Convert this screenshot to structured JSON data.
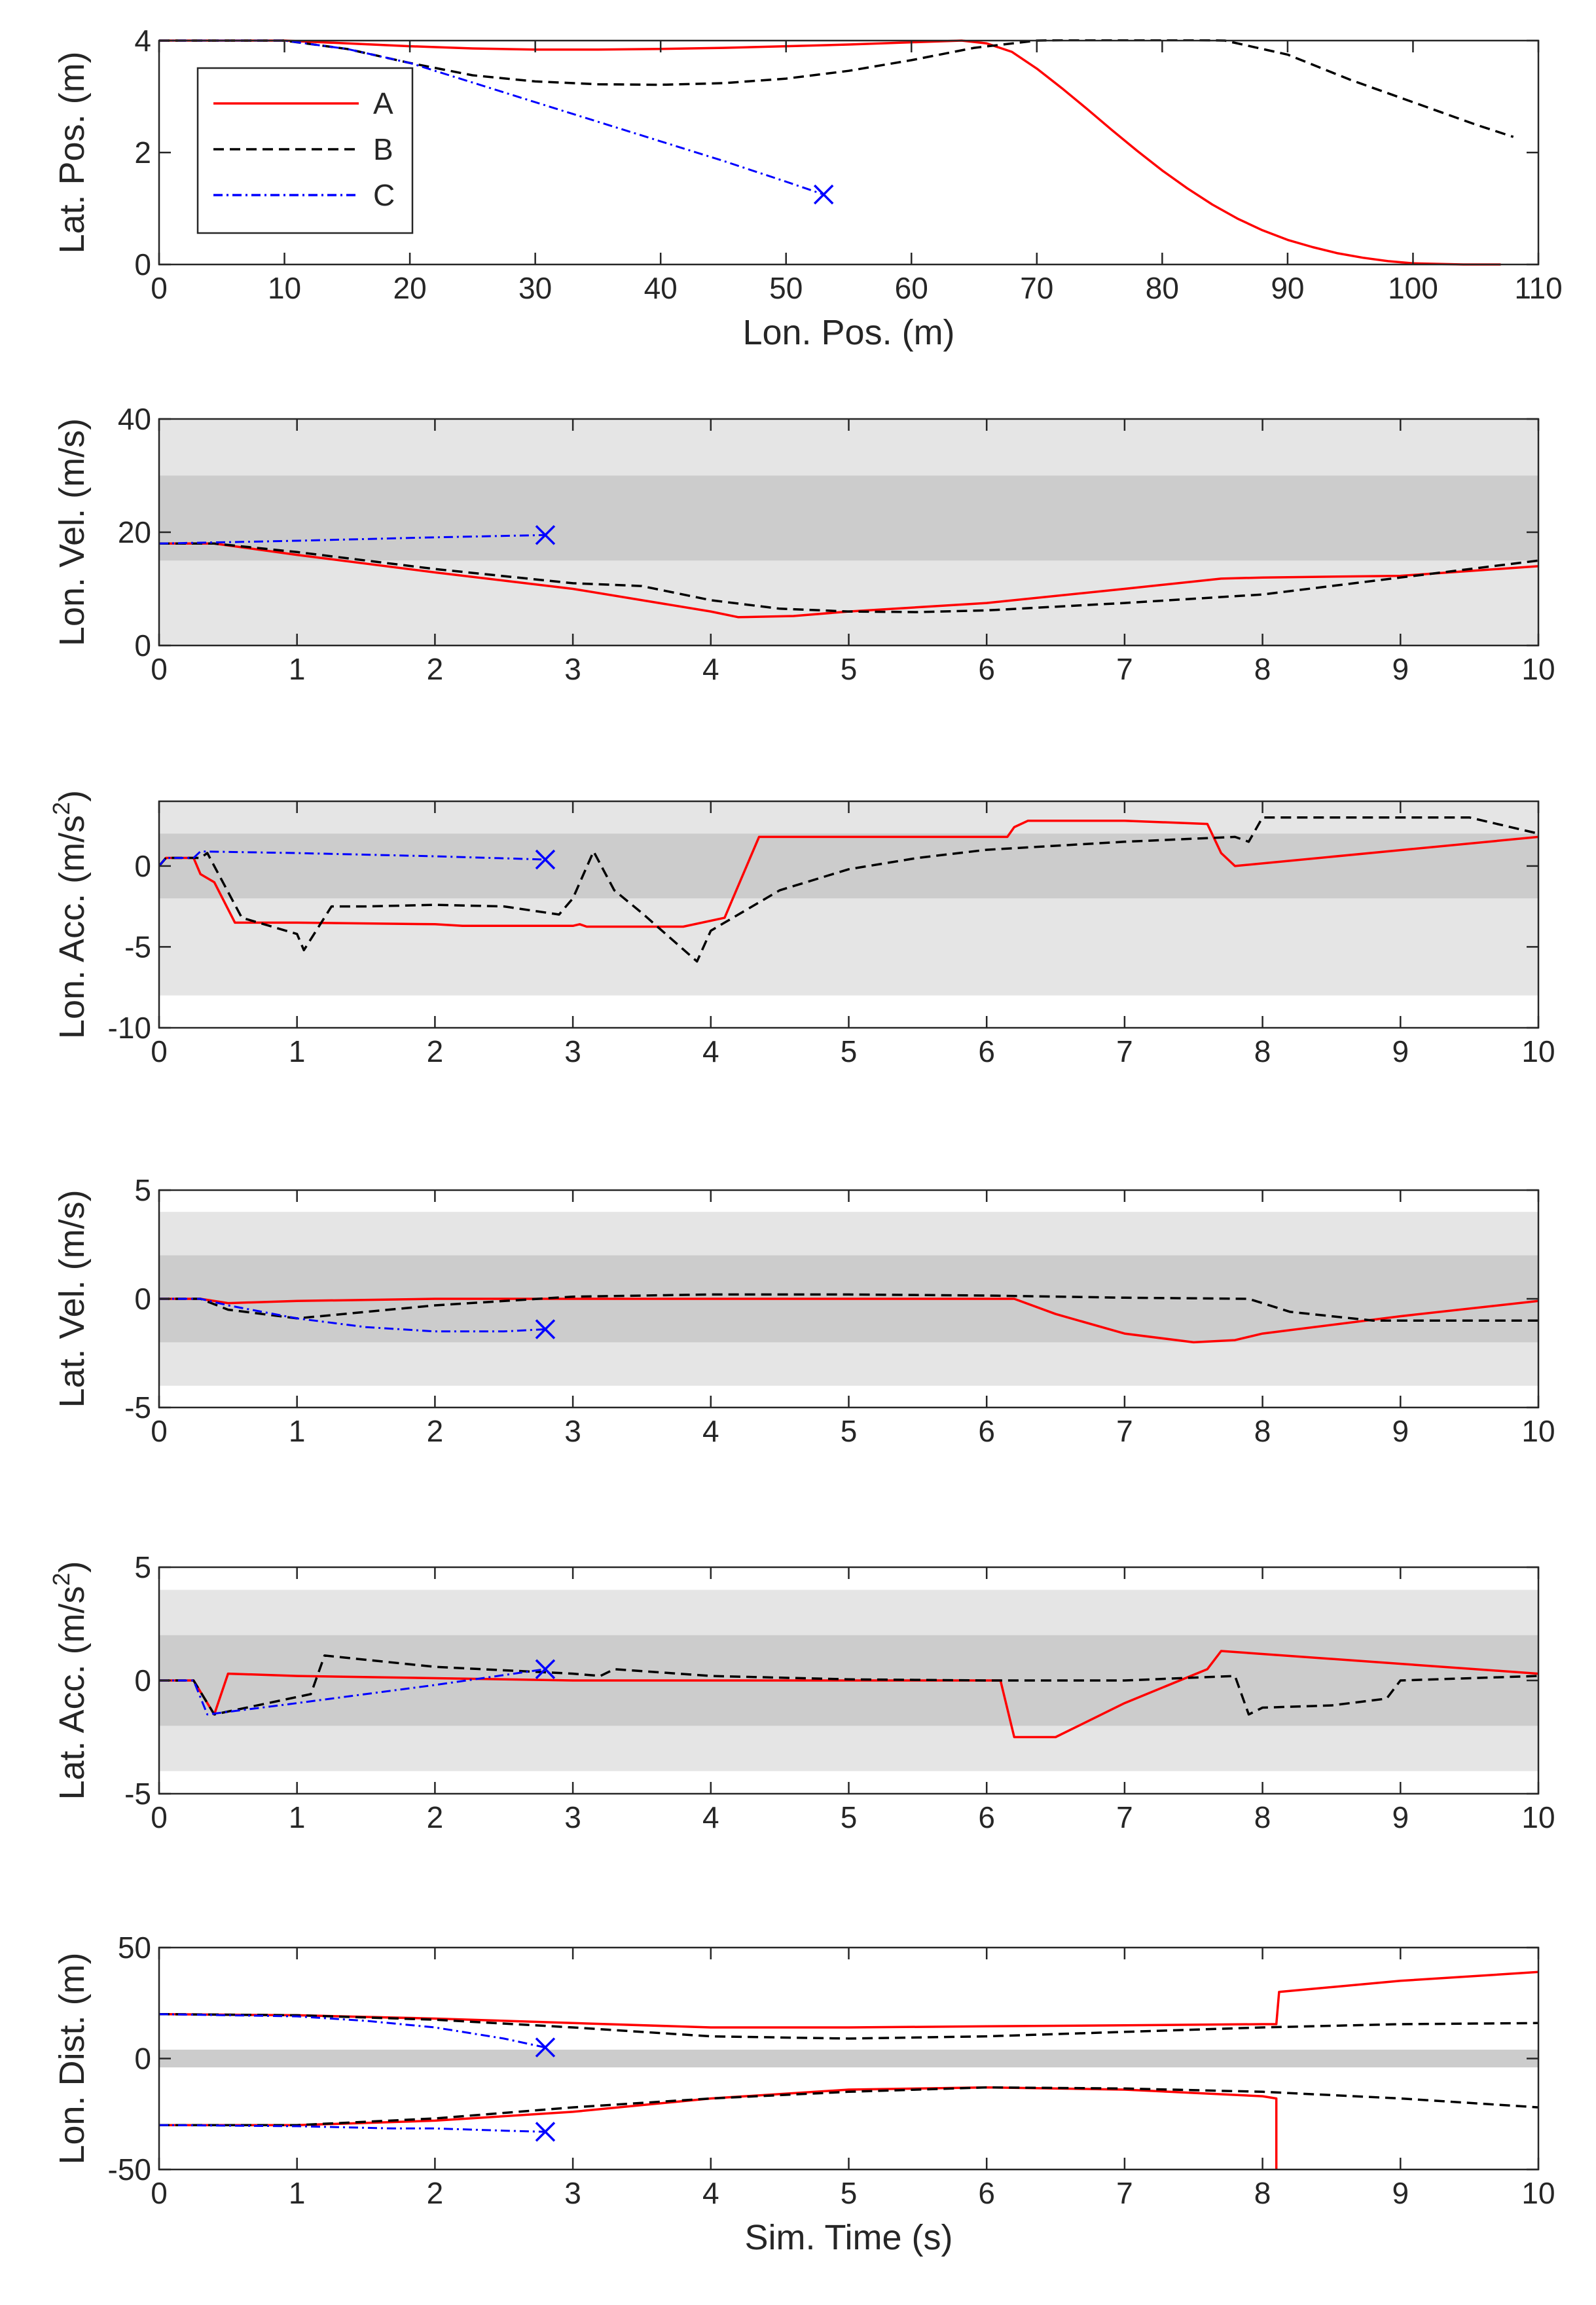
{
  "figure": {
    "legend": {
      "entries": [
        {
          "label": "A",
          "color": "#ff0000",
          "dash": "solid"
        },
        {
          "label": "B",
          "color": "#000000",
          "dash": "dashed"
        },
        {
          "label": "C",
          "color": "#0000ff",
          "dash": "dashdot"
        }
      ],
      "placement": "top-left"
    },
    "styles": {
      "A": {
        "color": "#ff0000",
        "dash": "solid"
      },
      "B": {
        "color": "#000000",
        "dash": "dashed"
      },
      "C": {
        "color": "#0000ff",
        "dash": "dashdot"
      },
      "band_outer_color": "#e5e5e5",
      "band_inner_color": "#cccccc",
      "end_marker": "x"
    }
  },
  "chart_data": [
    {
      "type": "line",
      "xlabel": "Lon. Pos. (m)",
      "ylabel": "Lat. Pos. (m)",
      "ylabel_sup": "",
      "xlim": [
        0,
        110
      ],
      "ylim": [
        0,
        4
      ],
      "xticks": [
        0,
        10,
        20,
        30,
        40,
        50,
        60,
        70,
        80,
        90,
        100,
        110
      ],
      "yticks": [
        0,
        2,
        4
      ],
      "bands": [],
      "grid": false,
      "legend": true,
      "series": [
        {
          "name": "A",
          "x": [
            0,
            5,
            10,
            15,
            20,
            25,
            30,
            35,
            40,
            45,
            50,
            55,
            60,
            64,
            66,
            68,
            70,
            72,
            74,
            76,
            78,
            80,
            82,
            84,
            86,
            88,
            90,
            92,
            94,
            96,
            98,
            100,
            102,
            104,
            106,
            107
          ],
          "y": [
            4,
            4,
            4,
            3.95,
            3.9,
            3.86,
            3.84,
            3.84,
            3.85,
            3.87,
            3.9,
            3.93,
            3.97,
            4,
            3.95,
            3.8,
            3.5,
            3.15,
            2.78,
            2.4,
            2.03,
            1.68,
            1.36,
            1.07,
            0.82,
            0.61,
            0.44,
            0.31,
            0.2,
            0.12,
            0.06,
            0.02,
            0.01,
            0,
            0,
            0
          ]
        },
        {
          "name": "B",
          "x": [
            0,
            5,
            10,
            15,
            20,
            25,
            30,
            35,
            40,
            45,
            50,
            55,
            60,
            65,
            70,
            75,
            80,
            85,
            90,
            95,
            100,
            105,
            108
          ],
          "y": [
            4,
            4,
            4,
            3.85,
            3.6,
            3.38,
            3.27,
            3.22,
            3.21,
            3.24,
            3.32,
            3.46,
            3.65,
            3.87,
            4,
            4.02,
            4.02,
            4,
            3.75,
            3.3,
            2.9,
            2.5,
            2.28
          ]
        },
        {
          "name": "C",
          "x": [
            0,
            5,
            10,
            15,
            20,
            25,
            30,
            35,
            40,
            45,
            50,
            53
          ],
          "y": [
            4,
            4,
            4,
            3.85,
            3.6,
            3.25,
            2.9,
            2.55,
            2.2,
            1.85,
            1.48,
            1.25
          ]
        }
      ],
      "end_marker": {
        "series": "C",
        "x": 53,
        "y": 1.25
      }
    },
    {
      "type": "line",
      "xlabel": "",
      "ylabel": "Lon. Vel. (m/s)",
      "ylabel_sup": "",
      "xlim": [
        0,
        10
      ],
      "ylim": [
        0,
        40
      ],
      "xticks": [
        0,
        1,
        2,
        3,
        4,
        5,
        6,
        7,
        8,
        9,
        10
      ],
      "yticks": [
        0,
        20,
        40
      ],
      "bands": [
        {
          "from": 0,
          "to": 40,
          "shade": "outer"
        },
        {
          "from": 15,
          "to": 30,
          "shade": "inner"
        }
      ],
      "grid": false,
      "legend": false,
      "series": [
        {
          "name": "A",
          "x": [
            0,
            0.4,
            1,
            2,
            3,
            4,
            4.2,
            4.6,
            5,
            6,
            7,
            7.7,
            8,
            9,
            10
          ],
          "y": [
            18,
            18,
            16,
            12.9,
            10,
            6,
            5,
            5.2,
            6,
            7.5,
            10,
            11.8,
            12,
            12.3,
            14
          ]
        },
        {
          "name": "B",
          "x": [
            0,
            0.4,
            1,
            2,
            3,
            3.5,
            4,
            4.5,
            5,
            5.5,
            6,
            7,
            8,
            9,
            10
          ],
          "y": [
            18,
            18,
            16.5,
            13.5,
            11,
            10.5,
            8,
            6.5,
            6,
            5.9,
            6.2,
            7.5,
            9,
            12,
            15
          ]
        },
        {
          "name": "C",
          "x": [
            0,
            0.4,
            1,
            2,
            2.8
          ],
          "y": [
            18,
            18.2,
            18.5,
            19.1,
            19.5
          ]
        }
      ],
      "end_marker": {
        "series": "C",
        "x": 2.8,
        "y": 19.5
      }
    },
    {
      "type": "line",
      "xlabel": "",
      "ylabel": "Lon. Acc. (m/s",
      "ylabel_sup": "2",
      "xlim": [
        0,
        10
      ],
      "ylim": [
        -10,
        4
      ],
      "xticks": [
        0,
        1,
        2,
        3,
        4,
        5,
        6,
        7,
        8,
        9,
        10
      ],
      "yticks": [
        -10,
        -5,
        0
      ],
      "bands": [
        {
          "from": -8,
          "to": 4,
          "shade": "outer"
        },
        {
          "from": -2,
          "to": 2,
          "shade": "inner"
        }
      ],
      "grid": false,
      "legend": false,
      "series": [
        {
          "name": "A",
          "x": [
            0,
            0.05,
            0.25,
            0.3,
            0.4,
            0.55,
            1,
            2,
            2.2,
            3,
            3.05,
            3.1,
            3.8,
            4.1,
            4.35,
            5,
            6.15,
            6.2,
            6.3,
            7,
            7.6,
            7.7,
            7.8,
            10
          ],
          "y": [
            0,
            0.5,
            0.5,
            -0.5,
            -1,
            -3.5,
            -3.5,
            -3.6,
            -3.7,
            -3.7,
            -3.6,
            -3.75,
            -3.75,
            -3.2,
            1.8,
            1.8,
            1.8,
            2.4,
            2.8,
            2.8,
            2.6,
            0.8,
            0,
            1.8
          ]
        },
        {
          "name": "B",
          "x": [
            0,
            0.05,
            0.3,
            0.35,
            0.6,
            1,
            1.05,
            1.25,
            1.5,
            2,
            2.5,
            2.9,
            3,
            3.15,
            3.3,
            3.5,
            3.9,
            4,
            4.5,
            5,
            5.5,
            6,
            7,
            7.8,
            7.9,
            8,
            9,
            9.5,
            10
          ],
          "y": [
            0,
            0.5,
            0.5,
            0.8,
            -3.2,
            -4.2,
            -5.2,
            -2.5,
            -2.5,
            -2.4,
            -2.5,
            -3,
            -2,
            0.9,
            -1.5,
            -2.9,
            -5.9,
            -4,
            -1.5,
            -0.2,
            0.5,
            1,
            1.5,
            1.8,
            1.5,
            3,
            3,
            3,
            2
          ]
        },
        {
          "name": "C",
          "x": [
            0,
            0.05,
            0.25,
            0.3,
            1,
            2,
            2.8
          ],
          "y": [
            0,
            0.5,
            0.5,
            0.9,
            0.8,
            0.6,
            0.4
          ]
        }
      ],
      "end_marker": {
        "series": "C",
        "x": 2.8,
        "y": 0.4
      }
    },
    {
      "type": "line",
      "xlabel": "",
      "ylabel": "Lat. Vel. (m/s)",
      "ylabel_sup": "",
      "xlim": [
        0,
        10
      ],
      "ylim": [
        -5,
        5
      ],
      "xticks": [
        0,
        1,
        2,
        3,
        4,
        5,
        6,
        7,
        8,
        9,
        10
      ],
      "yticks": [
        -5,
        0,
        5
      ],
      "bands": [
        {
          "from": -4,
          "to": 4,
          "shade": "outer"
        },
        {
          "from": -2,
          "to": 2,
          "shade": "inner"
        }
      ],
      "grid": false,
      "legend": false,
      "series": [
        {
          "name": "A",
          "x": [
            0,
            0.3,
            0.5,
            1,
            2,
            3,
            4,
            5,
            6.2,
            6.5,
            7,
            7.5,
            7.8,
            8,
            9,
            10
          ],
          "y": [
            0,
            0,
            -0.2,
            -0.1,
            0,
            0,
            0,
            0,
            0,
            -0.7,
            -1.6,
            -2,
            -1.9,
            -1.6,
            -0.8,
            -0.1
          ]
        },
        {
          "name": "B",
          "x": [
            0,
            0.3,
            0.5,
            1,
            2,
            3,
            4,
            5,
            6,
            7,
            7.9,
            8.2,
            8.8,
            10
          ],
          "y": [
            0,
            0,
            -0.5,
            -0.9,
            -0.3,
            0.1,
            0.2,
            0.2,
            0.15,
            0.05,
            0,
            -0.6,
            -1,
            -1
          ]
        },
        {
          "name": "C",
          "x": [
            0,
            0.3,
            0.5,
            1,
            1.5,
            2,
            2.5,
            2.8
          ],
          "y": [
            0,
            0,
            -0.3,
            -0.9,
            -1.3,
            -1.5,
            -1.5,
            -1.4
          ]
        }
      ],
      "end_marker": {
        "series": "C",
        "x": 2.8,
        "y": -1.4
      }
    },
    {
      "type": "line",
      "xlabel": "",
      "ylabel": "Lat. Acc. (m/s",
      "ylabel_sup": "2",
      "xlim": [
        0,
        10
      ],
      "ylim": [
        -5,
        5
      ],
      "xticks": [
        0,
        1,
        2,
        3,
        4,
        5,
        6,
        7,
        8,
        9,
        10
      ],
      "yticks": [
        -5,
        0,
        5
      ],
      "bands": [
        {
          "from": -4,
          "to": 4,
          "shade": "outer"
        },
        {
          "from": -2,
          "to": 2,
          "shade": "inner"
        }
      ],
      "grid": false,
      "legend": false,
      "series": [
        {
          "name": "A",
          "x": [
            0,
            0.25,
            0.4,
            0.5,
            1,
            2,
            3,
            6.1,
            6.2,
            6.5,
            7,
            7.6,
            7.7,
            10
          ],
          "y": [
            0,
            0,
            -1.5,
            0.3,
            0.2,
            0.1,
            0,
            0,
            -2.5,
            -2.5,
            -1,
            0.5,
            1.3,
            0.3
          ]
        },
        {
          "name": "B",
          "x": [
            0,
            0.25,
            0.4,
            1.1,
            1.2,
            2,
            3,
            3.2,
            3.3,
            4,
            5,
            6,
            7,
            7.8,
            7.9,
            8,
            8.5,
            8.9,
            9,
            10
          ],
          "y": [
            0,
            0,
            -1.5,
            -0.6,
            1.1,
            0.6,
            0.3,
            0.2,
            0.5,
            0.2,
            0.05,
            0,
            0,
            0.2,
            -1.5,
            -1.2,
            -1.1,
            -0.8,
            0,
            0.2
          ]
        },
        {
          "name": "C",
          "x": [
            0,
            0.25,
            0.35,
            1,
            2,
            2.8
          ],
          "y": [
            0,
            0,
            -1.5,
            -1,
            -0.2,
            0.5
          ]
        }
      ],
      "end_marker": {
        "series": "C",
        "x": 2.8,
        "y": 0.5
      }
    },
    {
      "type": "line",
      "xlabel": "Sim. Time (s)",
      "ylabel": "Lon. Dist. (m)",
      "ylabel_sup": "",
      "xlim": [
        0,
        10
      ],
      "ylim": [
        -50,
        50
      ],
      "xticks": [
        0,
        1,
        2,
        3,
        4,
        5,
        6,
        7,
        8,
        9,
        10
      ],
      "yticks": [
        -50,
        0,
        50
      ],
      "bands": [
        {
          "from": -4,
          "to": 4,
          "shade": "inner"
        }
      ],
      "grid": false,
      "legend": false,
      "series": [
        {
          "name": "A (lead)",
          "x": [
            0,
            1,
            2,
            3,
            4,
            5,
            6,
            7,
            8,
            8.1,
            8.12,
            9,
            10
          ],
          "y": [
            20,
            19.5,
            18,
            16,
            14,
            14,
            14.5,
            15,
            15.5,
            15.5,
            30,
            35,
            39
          ]
        },
        {
          "name": "A (rear)",
          "x": [
            0,
            1,
            2,
            3,
            4,
            5,
            6,
            7,
            8,
            8.1,
            8.1
          ],
          "y": [
            -30,
            -30,
            -28,
            -24,
            -18,
            -14,
            -13,
            -14,
            -17,
            -18,
            -50
          ]
        },
        {
          "name": "B (lead)",
          "x": [
            0,
            1,
            2,
            3,
            4,
            5,
            6,
            7,
            8,
            9,
            10
          ],
          "y": [
            20,
            19.5,
            17.5,
            14,
            10,
            9,
            10,
            12,
            14,
            15.5,
            16
          ]
        },
        {
          "name": "B (rear)",
          "x": [
            0,
            1,
            2,
            3,
            4,
            5,
            6,
            7,
            8,
            9,
            10
          ],
          "y": [
            -30,
            -30,
            -27,
            -22,
            -18,
            -15,
            -13,
            -13.5,
            -15,
            -18,
            -22
          ]
        },
        {
          "name": "C (lead)",
          "x": [
            0,
            1,
            1.5,
            2,
            2.5,
            2.8
          ],
          "y": [
            20,
            19,
            17,
            14,
            9,
            5
          ]
        },
        {
          "name": "C (rear)",
          "x": [
            0,
            1,
            1.7,
            2,
            2.5,
            2.8
          ],
          "y": [
            -30,
            -30.5,
            -31.5,
            -31.5,
            -32.5,
            -33
          ]
        }
      ],
      "series_style": {
        "A (lead)": "A",
        "A (rear)": "A",
        "B (lead)": "B",
        "B (rear)": "B",
        "C (lead)": "C",
        "C (rear)": "C"
      },
      "end_markers": [
        {
          "series": "C",
          "x": 2.8,
          "y": 5
        },
        {
          "series": "C",
          "x": 2.8,
          "y": -33
        }
      ]
    }
  ]
}
